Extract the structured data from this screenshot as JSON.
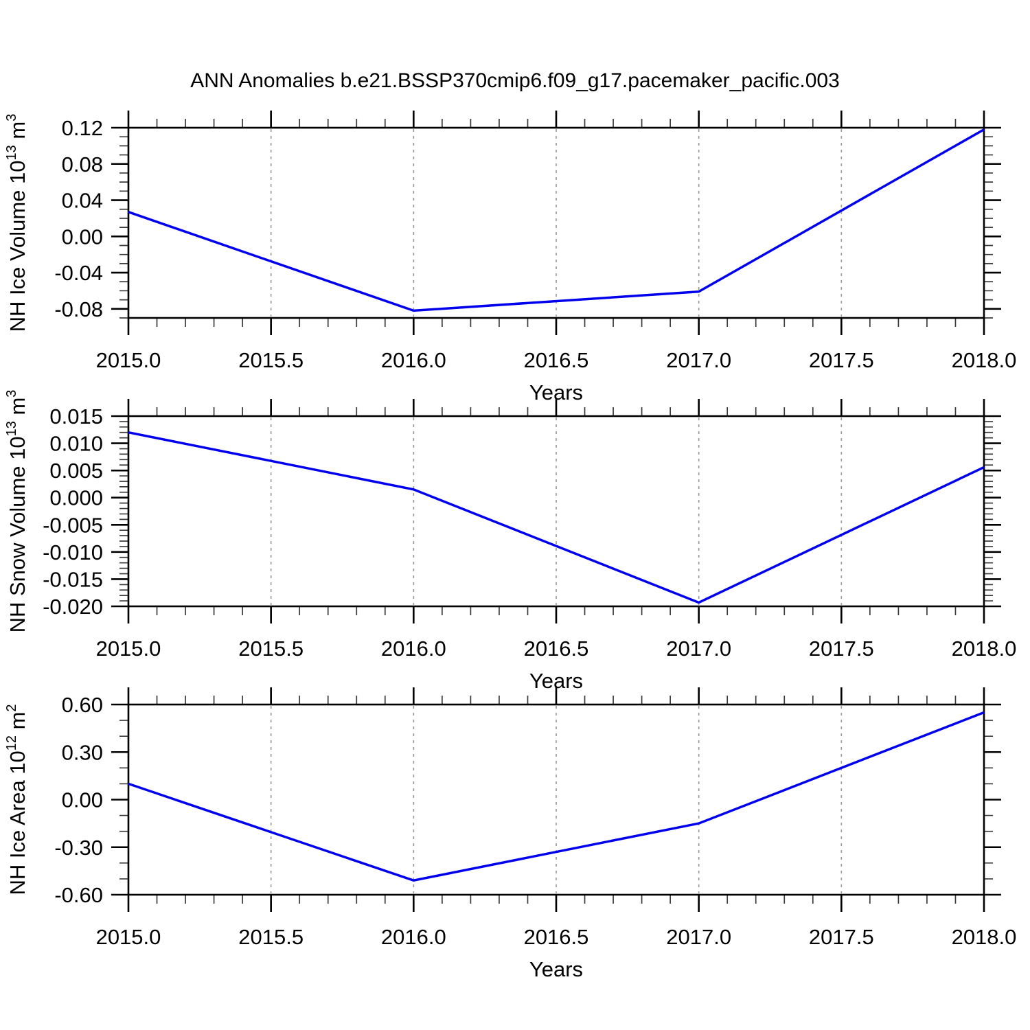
{
  "title": "ANN Anomalies b.e21.BSSP370cmip6.f09_g17.pacemaker_pacific.003",
  "colors": {
    "line": "#0000ee",
    "frame": "#000000",
    "minor_tick": "#3c3c3c",
    "grid": "#999999",
    "text": "#000000",
    "background": "#ffffff"
  },
  "chart_data": [
    {
      "type": "line",
      "name": "nh-ice-volume",
      "xlabel": "Years",
      "ylabel": "NH Ice Volume 10^{13} m^{3}",
      "x": [
        2015.0,
        2016.0,
        2017.0,
        2018.0
      ],
      "y": [
        0.027,
        -0.082,
        -0.061,
        0.118
      ],
      "xlim": [
        2015.0,
        2018.0
      ],
      "ylim": [
        -0.09,
        0.12
      ],
      "x_major_ticks": [
        2015.0,
        2015.5,
        2016.0,
        2016.5,
        2017.0,
        2017.5,
        2018.0
      ],
      "x_tick_labels": [
        "2015.0",
        "2015.5",
        "2016.0",
        "2016.5",
        "2017.0",
        "2017.5",
        "2018.0"
      ],
      "x_minor_step": 0.1,
      "y_major_ticks": [
        0.12,
        0.08,
        0.04,
        0.0,
        -0.04,
        -0.08
      ],
      "y_tick_labels": [
        "0.12",
        "0.08",
        "0.04",
        "0.00",
        "-0.04",
        "-0.08"
      ],
      "y_minor_step": 0.01,
      "grid_vertical_dashed": [
        2015.5,
        2016.0,
        2016.5,
        2017.0,
        2017.5
      ],
      "grid_horizontal": false
    },
    {
      "type": "line",
      "name": "nh-snow-volume",
      "xlabel": "Years",
      "ylabel": "NH Snow Volume 10^{13} m^{3}",
      "x": [
        2015.0,
        2016.0,
        2017.0,
        2018.0
      ],
      "y": [
        0.012,
        0.0015,
        -0.0193,
        0.0056
      ],
      "xlim": [
        2015.0,
        2018.0
      ],
      "ylim": [
        -0.02,
        0.015
      ],
      "x_major_ticks": [
        2015.0,
        2015.5,
        2016.0,
        2016.5,
        2017.0,
        2017.5,
        2018.0
      ],
      "x_tick_labels": [
        "2015.0",
        "2015.5",
        "2016.0",
        "2016.5",
        "2017.0",
        "2017.5",
        "2018.0"
      ],
      "x_minor_step": 0.1,
      "y_major_ticks": [
        0.015,
        0.01,
        0.005,
        0.0,
        -0.005,
        -0.01,
        -0.015,
        -0.02
      ],
      "y_tick_labels": [
        "0.015",
        "0.010",
        "0.005",
        "0.000",
        "-0.005",
        "-0.010",
        "-0.015",
        "-0.020"
      ],
      "y_minor_step": 0.001,
      "grid_vertical_dashed": [
        2015.5,
        2016.0,
        2016.5,
        2017.0,
        2017.5
      ],
      "grid_horizontal": false
    },
    {
      "type": "line",
      "name": "nh-ice-area",
      "xlabel": "Years",
      "ylabel": "NH Ice Area 10^{12} m^{2}",
      "x": [
        2015.0,
        2016.0,
        2017.0,
        2018.0
      ],
      "y": [
        0.1,
        -0.51,
        -0.15,
        0.55
      ],
      "xlim": [
        2015.0,
        2018.0
      ],
      "ylim": [
        -0.6,
        0.6
      ],
      "x_major_ticks": [
        2015.0,
        2015.5,
        2016.0,
        2016.5,
        2017.0,
        2017.5,
        2018.0
      ],
      "x_tick_labels": [
        "2015.0",
        "2015.5",
        "2016.0",
        "2016.5",
        "2017.0",
        "2017.5",
        "2018.0"
      ],
      "x_minor_step": 0.1,
      "y_major_ticks": [
        0.6,
        0.3,
        0.0,
        -0.3,
        -0.6
      ],
      "y_tick_labels": [
        "0.60",
        "0.30",
        "0.00",
        "-0.30",
        "-0.60"
      ],
      "y_minor_step": 0.1,
      "grid_vertical_dashed": [
        2015.5,
        2016.0,
        2016.5,
        2017.0,
        2017.5
      ],
      "grid_horizontal": false
    }
  ]
}
